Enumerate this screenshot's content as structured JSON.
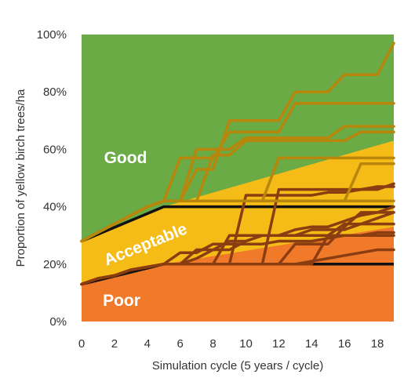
{
  "chart_data": {
    "type": "area",
    "xlabel": "Simulation cycle (5 years / cycle)",
    "ylabel": "Proportion of yellow birch trees/ha",
    "xlim": [
      0,
      19
    ],
    "ylim": [
      0,
      100
    ],
    "x_ticks": [
      0,
      2,
      4,
      6,
      8,
      10,
      12,
      14,
      16,
      18
    ],
    "y_ticks": [
      0,
      20,
      40,
      60,
      80,
      100
    ],
    "y_tick_labels": [
      "0%",
      "20%",
      "40%",
      "60%",
      "80%",
      "100%"
    ],
    "grid": false,
    "region_colors": {
      "poor": "#f07a2a",
      "acceptable": "#f5bb16",
      "good": "#6aab45"
    },
    "line_colors": {
      "upper": "#b8860b",
      "lower": "#8b3d12",
      "threshold": "#111111"
    },
    "regions": [
      {
        "name": "Good",
        "label_rotation": 0
      },
      {
        "name": "Acceptable",
        "label_rotation": -22
      },
      {
        "name": "Poor",
        "label_rotation": 0
      }
    ],
    "thresholds": {
      "acceptable_lower": {
        "x": [
          0,
          5,
          19
        ],
        "y": [
          13,
          20,
          20
        ]
      },
      "good_lower": {
        "x": [
          0,
          5,
          19
        ],
        "y": [
          28,
          40,
          40
        ]
      },
      "good_boundary_curve": {
        "x": [
          5,
          19
        ],
        "y": [
          40,
          63
        ]
      },
      "poor_boundary_curve": {
        "x": [
          5,
          19
        ],
        "y": [
          20,
          33
        ]
      }
    },
    "series": [
      {
        "group": "upper",
        "x": [
          0,
          1,
          2,
          3,
          4,
          5,
          6,
          7,
          8,
          9,
          10,
          11,
          12,
          13,
          14,
          15,
          16,
          17,
          18,
          19
        ],
        "y": [
          28,
          31,
          34,
          37,
          40,
          42,
          42,
          53,
          53,
          70,
          70,
          70,
          70,
          80,
          80,
          80,
          86,
          86,
          86,
          97
        ]
      },
      {
        "group": "upper",
        "x": [
          0,
          1,
          2,
          3,
          4,
          5,
          6,
          7,
          8,
          9,
          10,
          11,
          12,
          13,
          14,
          15,
          16,
          17,
          18,
          19
        ],
        "y": [
          28,
          31,
          34,
          37,
          40,
          42,
          57,
          57,
          57,
          66,
          66,
          66,
          66,
          76,
          76,
          76,
          76,
          76,
          76,
          76
        ]
      },
      {
        "group": "upper",
        "x": [
          0,
          1,
          2,
          3,
          4,
          5,
          6,
          7,
          8,
          9,
          10,
          11,
          12,
          13,
          14,
          15,
          16,
          17,
          18,
          19
        ],
        "y": [
          28,
          31,
          34,
          37,
          40,
          42,
          42,
          60,
          60,
          60,
          64,
          64,
          64,
          64,
          64,
          64,
          68,
          68,
          68,
          68
        ]
      },
      {
        "group": "upper",
        "x": [
          0,
          1,
          2,
          3,
          4,
          5,
          6,
          7,
          8,
          9,
          10,
          11,
          12,
          13,
          14,
          15,
          16,
          17,
          18,
          19
        ],
        "y": [
          28,
          31,
          34,
          37,
          40,
          42,
          42,
          42,
          58,
          58,
          63,
          63,
          63,
          63,
          63,
          63,
          63,
          66,
          66,
          66
        ]
      },
      {
        "group": "upper",
        "x": [
          0,
          1,
          2,
          3,
          4,
          5,
          6,
          7,
          8,
          9,
          10,
          11,
          12,
          13,
          14,
          15,
          16,
          17,
          18,
          19
        ],
        "y": [
          28,
          31,
          34,
          37,
          40,
          42,
          42,
          42,
          42,
          42,
          42,
          42,
          57,
          57,
          57,
          57,
          57,
          57,
          57,
          57
        ]
      },
      {
        "group": "upper",
        "x": [
          0,
          1,
          2,
          3,
          4,
          5,
          6,
          7,
          8,
          9,
          10,
          11,
          12,
          13,
          14,
          15,
          16,
          17,
          18,
          19
        ],
        "y": [
          28,
          31,
          34,
          37,
          40,
          42,
          42,
          42,
          42,
          42,
          42,
          42,
          42,
          42,
          42,
          42,
          42,
          55,
          55,
          55
        ]
      },
      {
        "group": "upper",
        "x": [
          0,
          1,
          2,
          3,
          4,
          5,
          6,
          7,
          8,
          9,
          10,
          11,
          12,
          13,
          14,
          15,
          16,
          17,
          18,
          19
        ],
        "y": [
          28,
          31,
          34,
          37,
          40,
          42,
          42,
          42,
          42,
          42,
          42,
          42,
          42,
          42,
          42,
          42,
          42,
          42,
          42,
          42
        ]
      },
      {
        "group": "lower",
        "x": [
          0,
          1,
          2,
          3,
          4,
          5,
          6,
          7,
          8,
          9,
          10,
          11,
          12,
          13,
          14,
          15,
          16,
          17,
          18,
          19
        ],
        "y": [
          13,
          15,
          16,
          18,
          19,
          20,
          20,
          20,
          20,
          20,
          20,
          20,
          20,
          20,
          21,
          22,
          23,
          24,
          25,
          25
        ]
      },
      {
        "group": "lower",
        "x": [
          0,
          1,
          2,
          3,
          4,
          5,
          6,
          7,
          8,
          9,
          10,
          11,
          12,
          13,
          14,
          15,
          16,
          17,
          18,
          19
        ],
        "y": [
          13,
          15,
          16,
          18,
          19,
          20,
          24,
          24,
          27,
          27,
          27,
          27,
          28,
          28,
          28,
          29,
          30,
          30,
          31,
          31
        ]
      },
      {
        "group": "lower",
        "x": [
          0,
          1,
          2,
          3,
          4,
          5,
          6,
          7,
          8,
          9,
          10,
          11,
          12,
          13,
          14,
          15,
          16,
          17,
          18,
          19
        ],
        "y": [
          13,
          15,
          16,
          18,
          19,
          20,
          20,
          25,
          25,
          28,
          28,
          30,
          30,
          30,
          32,
          32,
          32,
          34,
          36,
          38
        ]
      },
      {
        "group": "lower",
        "x": [
          0,
          1,
          2,
          3,
          4,
          5,
          6,
          7,
          8,
          9,
          10,
          11,
          12,
          13,
          14,
          15,
          16,
          17,
          18,
          19
        ],
        "y": [
          13,
          15,
          16,
          18,
          19,
          20,
          20,
          22,
          25,
          25,
          28,
          30,
          30,
          32,
          33,
          33,
          35,
          37,
          38,
          40
        ]
      },
      {
        "group": "lower",
        "x": [
          0,
          1,
          2,
          3,
          4,
          5,
          6,
          7,
          8,
          9,
          10,
          11,
          12,
          13,
          14,
          15,
          16,
          17,
          18,
          19
        ],
        "y": [
          13,
          15,
          16,
          18,
          19,
          20,
          20,
          20,
          20,
          30,
          30,
          30,
          30,
          30,
          30,
          30,
          34,
          34,
          34,
          34
        ]
      },
      {
        "group": "lower",
        "x": [
          0,
          1,
          2,
          3,
          4,
          5,
          6,
          7,
          8,
          9,
          10,
          11,
          12,
          13,
          14,
          15,
          16,
          17,
          18,
          19
        ],
        "y": [
          13,
          15,
          16,
          18,
          19,
          20,
          20,
          20,
          20,
          20,
          44,
          44,
          44,
          44,
          44,
          45,
          45,
          46,
          46,
          48
        ]
      },
      {
        "group": "lower",
        "x": [
          0,
          1,
          2,
          3,
          4,
          5,
          6,
          7,
          8,
          9,
          10,
          11,
          12,
          13,
          14,
          15,
          16,
          17,
          18,
          19
        ],
        "y": [
          13,
          15,
          16,
          18,
          19,
          20,
          20,
          20,
          20,
          20,
          20,
          20,
          46,
          46,
          46,
          46,
          46,
          46,
          47,
          47
        ]
      },
      {
        "group": "lower",
        "x": [
          0,
          1,
          2,
          3,
          4,
          5,
          6,
          7,
          8,
          9,
          10,
          11,
          12,
          13,
          14,
          15,
          16,
          17,
          18,
          19
        ],
        "y": [
          13,
          15,
          16,
          18,
          19,
          20,
          20,
          20,
          20,
          20,
          20,
          20,
          20,
          27,
          27,
          27,
          33,
          38,
          38,
          38
        ]
      },
      {
        "group": "lower",
        "x": [
          0,
          1,
          2,
          3,
          4,
          5,
          6,
          7,
          8,
          9,
          10,
          11,
          12,
          13,
          14,
          15,
          16,
          17,
          18,
          19
        ],
        "y": [
          13,
          15,
          16,
          18,
          19,
          20,
          20,
          20,
          20,
          20,
          20,
          20,
          20,
          20,
          20,
          30,
          30,
          30,
          30,
          30
        ]
      }
    ]
  }
}
